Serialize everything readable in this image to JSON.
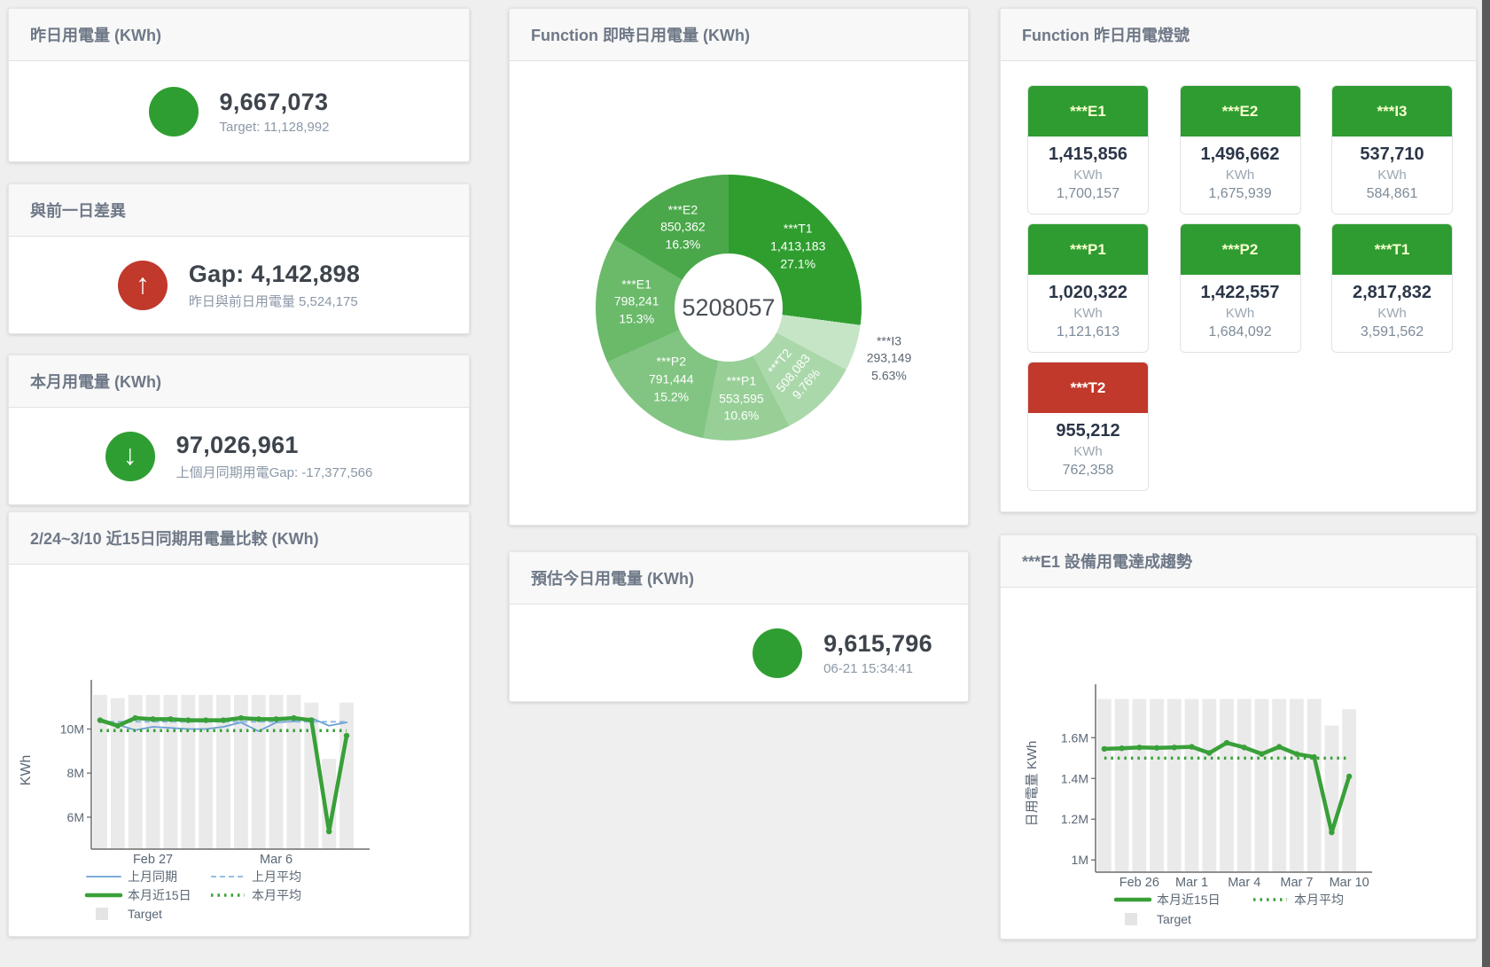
{
  "page": {
    "background": "#efefef",
    "scrollbar_color": "#5a5a5a"
  },
  "cards": {
    "yesterday": {
      "title": "昨日用電量 (KWh)",
      "value": "9,667,073",
      "subtitle": "Target: 11,128,992",
      "status_color": "#2f9e32"
    },
    "day_gap": {
      "title": "與前一日差異",
      "value": "Gap: 4,142,898",
      "subtitle": "昨日與前日用電量 5,524,175",
      "status_color": "#c0392b",
      "direction": "up"
    },
    "month": {
      "title": "本月用電量 (KWh)",
      "value": "97,026,961",
      "subtitle": "上個月同期用電Gap: -17,377,566",
      "status_color": "#2f9e32",
      "direction": "down"
    },
    "realtime": {
      "title": "Function 即時日用電量 (KWh)"
    },
    "estimate": {
      "title": "預估今日用電量 (KWh)",
      "value": "9,615,796",
      "subtitle": "06-21 15:34:41",
      "status_color": "#2f9e32"
    },
    "lights": {
      "title": "Function 昨日用電燈號",
      "tiles": [
        {
          "label": "***E1",
          "value": "1,415,856",
          "unit": "KWh",
          "target": "1,700,157",
          "color": "#2e9c31",
          "text_color": "#faffcf"
        },
        {
          "label": "***E2",
          "value": "1,496,662",
          "unit": "KWh",
          "target": "1,675,939",
          "color": "#2e9c31",
          "text_color": "#faffcf"
        },
        {
          "label": "***I3",
          "value": "537,710",
          "unit": "KWh",
          "target": "584,861",
          "color": "#2e9c31",
          "text_color": "#faffcf"
        },
        {
          "label": "***P1",
          "value": "1,020,322",
          "unit": "KWh",
          "target": "1,121,613",
          "color": "#2e9c31",
          "text_color": "#faffcf"
        },
        {
          "label": "***P2",
          "value": "1,422,557",
          "unit": "KWh",
          "target": "1,684,092",
          "color": "#2e9c31",
          "text_color": "#faffcf"
        },
        {
          "label": "***T1",
          "value": "2,817,832",
          "unit": "KWh",
          "target": "3,591,562",
          "color": "#2e9c31",
          "text_color": "#faffcf"
        },
        {
          "label": "***T2",
          "value": "955,212",
          "unit": "KWh",
          "target": "762,358",
          "color": "#c0392b",
          "text_color": "#ffffff"
        }
      ]
    },
    "compare": {
      "title": "2/24~3/10 近15日同期用電量比較 (KWh)"
    },
    "trend": {
      "title": "***E1 設備用電達成趨勢"
    }
  },
  "chart_data": [
    {
      "id": "realtime_donut",
      "type": "pie",
      "title": "Function 即時日用電量 (KWh)",
      "center_total": "5208057",
      "slices": [
        {
          "name": "***T1",
          "value": 1413183,
          "pct": 27.1,
          "color": "#2f9e2f"
        },
        {
          "name": "***I3",
          "value": 293149,
          "pct": 5.63,
          "color": "#c6e5c6",
          "outside": true
        },
        {
          "name": "***T2",
          "value": 508083,
          "pct": 9.76,
          "color": "#abd8ab",
          "rotate": -50
        },
        {
          "name": "***P1",
          "value": 553595,
          "pct": 10.6,
          "color": "#97cf97"
        },
        {
          "name": "***P2",
          "value": 791444,
          "pct": 15.2,
          "color": "#82c582"
        },
        {
          "name": "***E1",
          "value": 798241,
          "pct": 15.3,
          "color": "#6aba6a"
        },
        {
          "name": "***E2",
          "value": 850362,
          "pct": 16.3,
          "color": "#4aa84a"
        }
      ]
    },
    {
      "id": "compare15",
      "type": "line",
      "title": "2/24~3/10 近15日同期用電量比較 (KWh)",
      "ylabel": "KWh",
      "n": 15,
      "ylim": [
        4.55,
        11.75
      ],
      "yticks": [
        {
          "v": 6,
          "label": "6M"
        },
        {
          "v": 8,
          "label": "8M"
        },
        {
          "v": 10,
          "label": "10M"
        }
      ],
      "x_ticks": [
        {
          "index": 3,
          "label": "Feb 27"
        },
        {
          "index": 10,
          "label": "Mar 6"
        }
      ],
      "target_bars": {
        "name": "Target",
        "color": "#eaeaea",
        "values": [
          11.55,
          11.4,
          11.55,
          11.55,
          11.55,
          11.55,
          11.55,
          11.55,
          11.55,
          11.55,
          11.55,
          11.55,
          11.2,
          8.65,
          11.2
        ]
      },
      "series": [
        {
          "name": "上月同期",
          "style": "solid-thin",
          "color": "#6b9fd4",
          "values": [
            10.45,
            10.2,
            9.95,
            10.1,
            10.05,
            10.0,
            10.0,
            10.1,
            10.3,
            9.9,
            10.3,
            10.35,
            10.5,
            10.15,
            10.3
          ]
        },
        {
          "name": "上月平均",
          "style": "dashed",
          "color": "#8ab6e2",
          "values": [
            10.33,
            10.33,
            10.33,
            10.33,
            10.33,
            10.33,
            10.33,
            10.33,
            10.33,
            10.33,
            10.33,
            10.33,
            10.33,
            10.33,
            10.33
          ]
        },
        {
          "name": "本月近15日",
          "style": "solid-thick",
          "color": "#38a038",
          "values": [
            10.4,
            10.15,
            10.5,
            10.45,
            10.45,
            10.4,
            10.4,
            10.4,
            10.5,
            10.45,
            10.45,
            10.5,
            10.4,
            5.35,
            9.7
          ]
        },
        {
          "name": "本月平均",
          "style": "dotted",
          "color": "#38a038",
          "values": [
            9.93,
            9.93,
            9.93,
            9.93,
            9.93,
            9.93,
            9.93,
            9.93,
            9.93,
            9.93,
            9.93,
            9.93,
            9.93,
            9.93,
            9.93
          ]
        }
      ],
      "legend_rows": [
        [
          "上月同期",
          "上月平均"
        ],
        [
          "本月近15日",
          "本月平均"
        ],
        [
          "Target"
        ]
      ]
    },
    {
      "id": "e1trend",
      "type": "line",
      "title": "***E1 設備用電達成趨勢",
      "ylabel": "日用電量 KWh",
      "n": 15,
      "ylim": [
        0.94,
        1.81
      ],
      "yticks": [
        {
          "v": 1,
          "label": "1M"
        },
        {
          "v": 1.2,
          "label": "1.2M"
        },
        {
          "v": 1.4,
          "label": "1.4M"
        },
        {
          "v": 1.6,
          "label": "1.6M"
        }
      ],
      "x_ticks": [
        {
          "index": 2,
          "label": "Feb 26"
        },
        {
          "index": 5,
          "label": "Mar 1"
        },
        {
          "index": 8,
          "label": "Mar 4"
        },
        {
          "index": 11,
          "label": "Mar 7"
        },
        {
          "index": 14,
          "label": "Mar 10"
        }
      ],
      "target_bars": {
        "name": "Target",
        "color": "#eaeaea",
        "values": [
          1.79,
          1.79,
          1.79,
          1.79,
          1.79,
          1.79,
          1.79,
          1.79,
          1.79,
          1.79,
          1.79,
          1.79,
          1.79,
          1.66,
          1.74
        ]
      },
      "series": [
        {
          "name": "本月近15日",
          "style": "solid-thick",
          "color": "#38a038",
          "values": [
            1.545,
            1.548,
            1.552,
            1.55,
            1.552,
            1.555,
            1.525,
            1.575,
            1.552,
            1.52,
            1.555,
            1.52,
            1.505,
            1.135,
            1.41
          ]
        },
        {
          "name": "本月平均",
          "style": "dotted",
          "color": "#38a038",
          "values": [
            1.5,
            1.5,
            1.5,
            1.5,
            1.5,
            1.5,
            1.5,
            1.5,
            1.5,
            1.5,
            1.5,
            1.5,
            1.5,
            1.5,
            1.5
          ]
        }
      ],
      "legend_rows": [
        [
          "本月近15日",
          "本月平均"
        ],
        [
          "Target"
        ]
      ]
    }
  ]
}
